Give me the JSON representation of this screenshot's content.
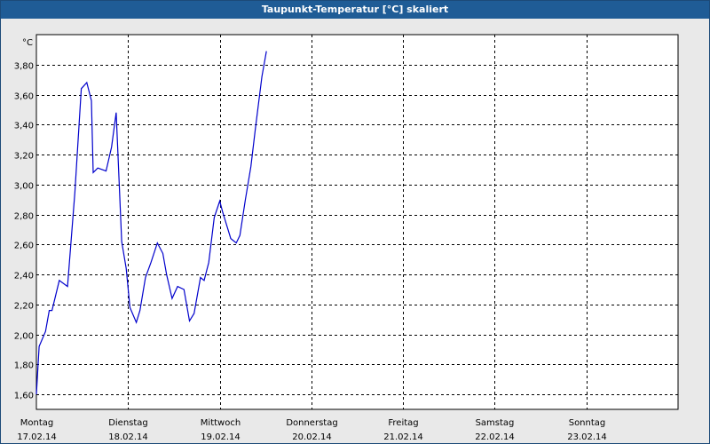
{
  "window": {
    "title": "Taupunkt-Temperatur [°C] skaliert"
  },
  "chart_data": {
    "type": "line",
    "title": "Taupunkt-Temperatur [°C] skaliert",
    "ylabel": "°C",
    "ylim": [
      1.5,
      4.0
    ],
    "yticks": [
      "1,60",
      "1,80",
      "2,00",
      "2,20",
      "2,40",
      "2,60",
      "2,80",
      "3,00",
      "3,20",
      "3,40",
      "3,60",
      "3,80"
    ],
    "ytick_values": [
      1.6,
      1.8,
      2.0,
      2.2,
      2.4,
      2.6,
      2.8,
      3.0,
      3.2,
      3.4,
      3.6,
      3.8
    ],
    "xlim": [
      0,
      7
    ],
    "xticks": [
      {
        "day": "Montag",
        "date": "17.02.14"
      },
      {
        "day": "Dienstag",
        "date": "18.02.14"
      },
      {
        "day": "Mittwoch",
        "date": "19.02.14"
      },
      {
        "day": "Donnerstag",
        "date": "20.02.14"
      },
      {
        "day": "Freitag",
        "date": "21.02.14"
      },
      {
        "day": "Samstag",
        "date": "22.02.14"
      },
      {
        "day": "Sonntag",
        "date": "23.02.14"
      }
    ],
    "grid": true,
    "line_color": "#0000cc",
    "series": [
      {
        "x": [
          0,
          0.03,
          0.1,
          0.14,
          0.17,
          0.25,
          0.34,
          0.42,
          0.49,
          0.55,
          0.6,
          0.62,
          0.67,
          0.76,
          0.82,
          0.87,
          0.93,
          0.98,
          1.02,
          1.09,
          1.13,
          1.19,
          1.25,
          1.32,
          1.38,
          1.42,
          1.48,
          1.54,
          1.61,
          1.67,
          1.72,
          1.79,
          1.83,
          1.88,
          1.94,
          2.0,
          2.03,
          2.12,
          2.18,
          2.22,
          2.28,
          2.34,
          2.39,
          2.46,
          2.51
        ],
        "y": [
          1.6,
          1.92,
          2.02,
          2.16,
          2.16,
          2.36,
          2.32,
          2.95,
          3.64,
          3.68,
          3.56,
          3.08,
          3.11,
          3.09,
          3.25,
          3.48,
          2.62,
          2.44,
          2.18,
          2.08,
          2.16,
          2.38,
          2.48,
          2.61,
          2.54,
          2.4,
          2.24,
          2.32,
          2.3,
          2.09,
          2.14,
          2.38,
          2.36,
          2.48,
          2.78,
          2.89,
          2.82,
          2.64,
          2.61,
          2.66,
          2.9,
          3.12,
          3.38,
          3.72,
          3.89
        ]
      }
    ]
  }
}
